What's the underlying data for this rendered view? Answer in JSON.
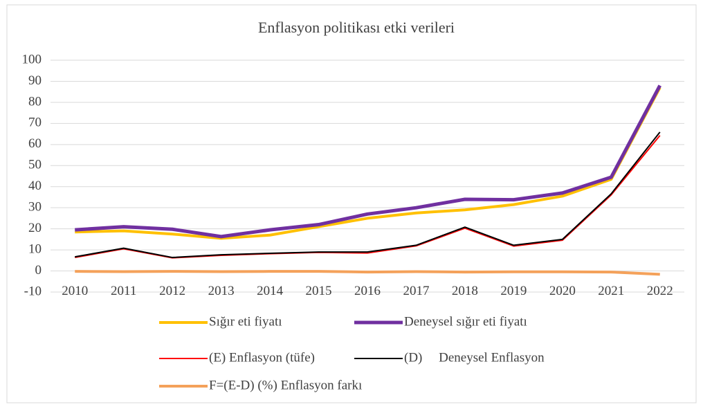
{
  "chart_data": {
    "type": "line",
    "title": "Enflasyon politikası etki verileri",
    "categories": [
      "2010",
      "2011",
      "2012",
      "2013",
      "2014",
      "2015",
      "2016",
      "2017",
      "2018",
      "2019",
      "2020",
      "2021",
      "2022"
    ],
    "series": [
      {
        "name": "Sığır eti fiyatı",
        "color": "#FFC000",
        "values": [
          18.5,
          19,
          17.5,
          15.5,
          17,
          21,
          25,
          27.5,
          29,
          31.5,
          35.5,
          43.5,
          87
        ]
      },
      {
        "name": "Deneysel sığır eti fiyatı",
        "color": "#7030A0",
        "values": [
          19.5,
          21,
          19.8,
          16.3,
          19.5,
          22,
          27,
          30,
          34,
          33.8,
          37,
          44.5,
          88
        ]
      },
      {
        "name": "(E) Enflasyon (tüfe)",
        "color": "#FF0000",
        "values": [
          6.4,
          10.5,
          6.2,
          7.4,
          8.2,
          8.8,
          8.5,
          11.9,
          20.3,
          11.8,
          14.6,
          36.1,
          64.3
        ]
      },
      {
        "name": "(D)     Deneysel Enflasyon",
        "color": "#000000",
        "values": [
          6.7,
          10.8,
          6.4,
          7.7,
          8.4,
          9.0,
          9.0,
          12.2,
          20.8,
          12.2,
          15.0,
          36.6,
          65.9
        ]
      },
      {
        "name": "F=(E-D) (%) Enflasyon farkı",
        "color": "#F4A15A",
        "values": [
          -0.2,
          -0.3,
          -0.2,
          -0.3,
          -0.2,
          -0.2,
          -0.5,
          -0.3,
          -0.5,
          -0.4,
          -0.4,
          -0.5,
          -1.6
        ]
      }
    ],
    "ylim": [
      -10,
      100
    ],
    "yticks": [
      -10,
      0,
      10,
      20,
      30,
      40,
      50,
      60,
      70,
      80,
      90,
      100
    ],
    "grid": true,
    "legend": "bottom"
  }
}
